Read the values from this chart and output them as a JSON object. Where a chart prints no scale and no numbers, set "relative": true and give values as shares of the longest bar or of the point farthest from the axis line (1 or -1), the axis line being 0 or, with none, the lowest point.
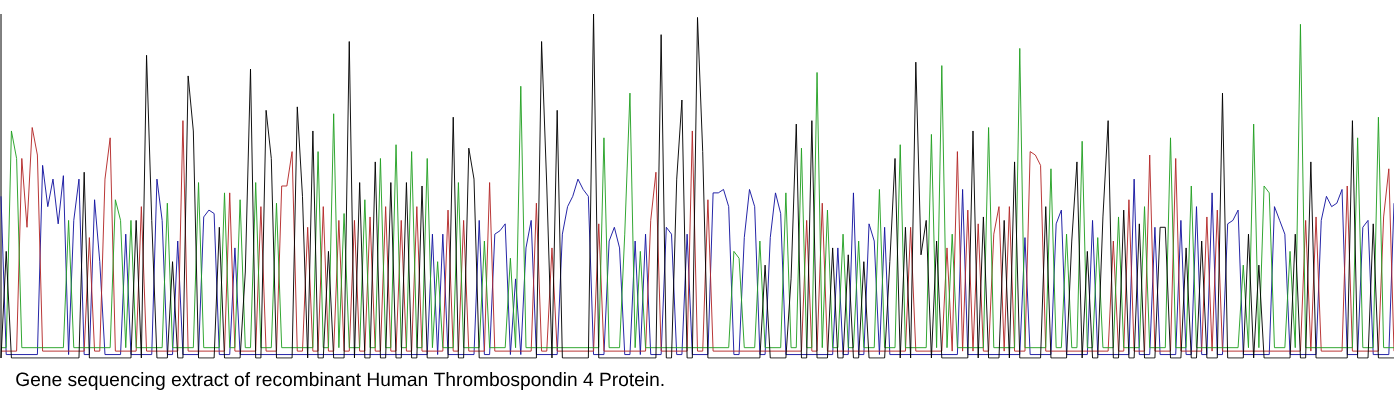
{
  "chart_data": {
    "type": "line",
    "relative": true,
    "annotations": [
      "Gene sequencing extract of recombinant Human Thrombospondin 4 Protein."
    ],
    "categories": [
      null,
      null,
      null,
      null,
      null,
      null,
      null,
      null,
      null,
      null,
      null,
      null,
      null,
      null,
      null,
      null,
      null,
      null,
      null,
      null,
      null,
      null,
      null,
      null,
      null,
      null,
      null,
      null,
      null,
      null,
      null,
      null,
      null,
      null,
      null,
      null,
      null,
      null,
      null,
      null,
      null,
      null,
      null,
      null,
      null,
      null,
      null,
      null,
      null,
      null,
      null,
      null,
      null,
      null,
      null,
      null,
      null,
      null,
      null,
      null,
      null,
      null,
      null,
      null,
      null,
      null,
      null,
      null,
      null,
      null,
      null,
      null,
      null,
      null,
      null,
      null,
      null,
      null,
      null,
      null,
      null,
      null,
      null,
      null,
      null,
      null,
      null,
      null,
      null,
      null,
      null,
      null,
      null,
      null,
      null,
      null,
      null,
      null,
      null,
      null,
      null,
      null,
      null,
      null,
      null,
      null,
      null,
      null,
      null,
      null,
      null,
      null,
      null,
      null,
      null,
      null,
      null,
      null,
      null,
      null,
      null,
      null,
      null,
      null,
      null,
      null,
      null,
      null,
      null,
      null,
      null,
      null,
      null,
      null,
      null,
      null,
      null,
      null,
      null,
      null,
      null,
      null,
      null,
      null,
      null,
      null,
      null,
      null,
      null,
      null,
      null,
      null,
      null,
      null,
      null,
      null,
      null,
      null,
      null,
      null,
      null,
      null,
      null,
      null,
      null,
      null,
      null,
      null,
      null,
      null,
      null,
      null,
      null,
      null,
      null,
      null,
      null,
      null,
      null,
      null,
      null,
      null,
      null,
      null,
      null,
      null,
      null,
      null,
      null,
      null,
      null,
      null,
      null,
      null,
      null,
      null,
      null,
      null,
      null,
      null,
      null,
      null,
      null,
      null,
      null,
      null,
      null,
      null,
      null,
      null,
      null,
      null,
      null,
      null,
      null,
      null,
      null,
      null,
      null,
      null,
      null,
      null,
      null,
      null,
      null,
      null,
      null,
      null,
      null,
      null,
      null,
      null,
      null,
      null,
      null,
      null,
      null,
      null,
      null,
      null,
      null,
      null,
      null,
      null,
      null,
      null,
      null,
      null,
      null,
      null,
      null,
      null,
      null,
      null,
      null,
      null,
      null,
      null,
      null,
      null,
      null,
      null,
      null,
      null,
      null,
      null,
      null,
      null,
      null
    ],
    "series": [
      {
        "color": "#1414a0",
        "values": [
          0.47,
          0.01,
          0.01,
          0.01,
          0.01,
          0.01,
          0.01,
          0.01,
          0.56,
          0.44,
          0.52,
          0.39,
          0.53,
          0.01,
          0.4,
          0.52,
          0.01,
          0.01,
          0.46,
          0.28,
          0.01,
          0.01,
          0.01,
          0.01,
          0.36,
          0.01,
          0.01,
          0.01,
          0.01,
          0.01,
          0.52,
          0.4,
          0.01,
          0.01,
          0.34,
          0.01,
          0.01,
          0.01,
          0.01,
          0.41,
          0.43,
          0.42,
          0.01,
          0.01,
          0.01,
          0.32,
          0.01,
          0.01,
          0.01,
          0.01,
          0.01,
          0.01,
          0.01,
          0.01,
          0.01,
          0.01,
          0.01,
          0.01,
          0.01,
          0.01,
          0.01,
          0.01,
          0.01,
          0.01,
          0.01,
          0.01,
          0.01,
          0.01,
          0.01,
          0.01,
          0.01,
          0.01,
          0.01,
          0.01,
          0.01,
          0.01,
          0.01,
          0.01,
          0.01,
          0.01,
          0.01,
          0.01,
          0.01,
          0.36,
          0.01,
          0.36,
          0.01,
          0.01,
          0.01,
          0.01,
          0.01,
          0.01,
          0.4,
          0.01,
          0.01,
          0.36,
          0.37,
          0.39,
          0.01,
          0.23,
          0.01,
          0.32,
          0.4,
          0.01,
          0.01,
          0.01,
          0.01,
          0.01,
          0.36,
          0.44,
          0.47,
          0.52,
          0.49,
          0.47,
          0.01,
          0.01,
          0.01,
          0.34,
          0.38,
          0.32,
          0.01,
          0.01,
          0.34,
          0.01,
          0.36,
          0.01,
          0.01,
          0.01,
          0.38,
          0.36,
          0.01,
          0.01,
          0.36,
          0.01,
          0.01,
          0.01,
          0.01,
          0.48,
          0.48,
          0.49,
          0.44,
          0.01,
          0.01,
          0.35,
          0.49,
          0.44,
          0.01,
          0.01,
          0.35,
          0.48,
          0.42,
          0.01,
          0.01,
          0.01,
          0.01,
          0.01,
          0.01,
          0.01,
          0.01,
          0.01,
          0.01,
          0.32,
          0.01,
          0.01,
          0.48,
          0.01,
          0.01,
          0.39,
          0.34,
          0.01,
          0.38,
          0.01,
          0.01,
          0.01,
          0.01,
          0.01,
          0.01,
          0.01,
          0.01,
          0.01,
          0.01,
          0.01,
          0.01,
          0.01,
          0.01,
          0.49,
          0.01,
          0.01,
          0.01,
          0.01,
          0.01,
          0.01,
          0.01,
          0.01,
          0.01,
          0.01,
          0.01,
          0.35,
          0.01,
          0.01,
          0.01,
          0.01,
          0.01,
          0.39,
          0.43,
          0.01,
          0.01,
          0.01,
          0.01,
          0.01,
          0.4,
          0.01,
          0.01,
          0.01,
          0.01,
          0.01,
          0.01,
          0.01,
          0.52,
          0.01,
          0.01,
          0.01,
          0.38,
          0.01,
          0.01,
          0.01,
          0.01,
          0.4,
          0.01,
          0.01,
          0.44,
          0.01,
          0.01,
          0.48,
          0.01,
          0.01,
          0.39,
          0.4,
          0.43,
          0.01,
          0.01,
          0.01,
          0.01,
          0.01,
          0.01,
          0.44,
          0.4,
          0.36,
          0.01,
          0.01,
          0.01,
          0.01,
          0.01,
          0.01,
          0.4,
          0.47,
          0.44,
          0.45,
          0.49,
          0.01,
          0.01,
          0.01,
          0.38,
          0.4,
          0.01,
          0.01,
          0.01,
          0.01,
          0.45
        ]
      },
      {
        "color": "#b42828",
        "values": [
          0.02,
          0.02,
          0.02,
          0.02,
          0.58,
          0.38,
          0.67,
          0.59,
          0.02,
          0.02,
          0.02,
          0.02,
          0.02,
          0.02,
          0.02,
          0.02,
          0.02,
          0.35,
          0.02,
          0.02,
          0.52,
          0.64,
          0.02,
          0.02,
          0.02,
          0.02,
          0.02,
          0.44,
          0.02,
          0.02,
          0.02,
          0.02,
          0.02,
          0.02,
          0.02,
          0.69,
          0.02,
          0.02,
          0.02,
          0.02,
          0.02,
          0.02,
          0.02,
          0.02,
          0.48,
          0.02,
          0.02,
          0.02,
          0.02,
          0.02,
          0.44,
          0.02,
          0.02,
          0.02,
          0.5,
          0.5,
          0.6,
          0.02,
          0.02,
          0.38,
          0.02,
          0.02,
          0.44,
          0.02,
          0.02,
          0.4,
          0.02,
          0.02,
          0.4,
          0.02,
          0.02,
          0.41,
          0.02,
          0.02,
          0.44,
          0.02,
          0.02,
          0.4,
          0.02,
          0.02,
          0.44,
          0.02,
          0.02,
          0.02,
          0.02,
          0.02,
          0.43,
          0.02,
          0.02,
          0.4,
          0.02,
          0.02,
          0.02,
          0.02,
          0.51,
          0.02,
          0.02,
          0.02,
          0.02,
          0.02,
          0.02,
          0.02,
          0.02,
          0.45,
          0.02,
          0.02,
          0.32,
          0.02,
          0.02,
          0.02,
          0.02,
          0.02,
          0.02,
          0.02,
          0.02,
          0.39,
          0.02,
          0.02,
          0.02,
          0.02,
          0.02,
          0.02,
          0.02,
          0.02,
          0.02,
          0.4,
          0.54,
          0.02,
          0.02,
          0.02,
          0.02,
          0.02,
          0.02,
          0.66,
          0.02,
          0.02,
          0.46,
          0.02,
          0.02,
          0.02,
          0.02,
          0.02,
          0.02,
          0.02,
          0.02,
          0.02,
          0.02,
          0.02,
          0.02,
          0.02,
          0.02,
          0.02,
          0.02,
          0.02,
          0.02,
          0.4,
          0.02,
          0.02,
          0.45,
          0.02,
          0.02,
          0.02,
          0.02,
          0.02,
          0.02,
          0.02,
          0.02,
          0.02,
          0.02,
          0.02,
          0.02,
          0.02,
          0.02,
          0.02,
          0.02,
          0.38,
          0.02,
          0.02,
          0.02,
          0.02,
          0.02,
          0.02,
          0.32,
          0.02,
          0.6,
          0.02,
          0.43,
          0.02,
          0.39,
          0.02,
          0.02,
          0.36,
          0.44,
          0.02,
          0.44,
          0.02,
          0.02,
          0.02,
          0.6,
          0.59,
          0.56,
          0.02,
          0.02,
          0.02,
          0.02,
          0.02,
          0.02,
          0.02,
          0.02,
          0.02,
          0.02,
          0.02,
          0.02,
          0.02,
          0.34,
          0.02,
          0.02,
          0.46,
          0.02,
          0.02,
          0.02,
          0.59,
          0.02,
          0.02,
          0.02,
          0.02,
          0.58,
          0.02,
          0.02,
          0.02,
          0.02,
          0.02,
          0.41,
          0.02,
          0.43,
          0.02,
          0.02,
          0.02,
          0.02,
          0.02,
          0.02,
          0.02,
          0.02,
          0.02,
          0.02,
          0.02,
          0.02,
          0.02,
          0.02,
          0.02,
          0.02,
          0.4,
          0.02,
          0.41,
          0.02,
          0.02,
          0.02,
          0.02,
          0.02,
          0.5,
          0.02,
          0.02,
          0.02,
          0.02,
          0.02,
          0.02,
          0.41,
          0.55,
          0.02
        ]
      },
      {
        "color": "#22a022",
        "values": [
          0.03,
          0.03,
          0.66,
          0.58,
          0.03,
          0.03,
          0.03,
          0.03,
          0.03,
          0.03,
          0.03,
          0.03,
          0.03,
          0.4,
          0.03,
          0.03,
          0.03,
          0.03,
          0.03,
          0.03,
          0.03,
          0.03,
          0.46,
          0.4,
          0.03,
          0.4,
          0.03,
          0.03,
          0.03,
          0.03,
          0.03,
          0.03,
          0.45,
          0.03,
          0.03,
          0.03,
          0.03,
          0.03,
          0.51,
          0.03,
          0.03,
          0.03,
          0.03,
          0.48,
          0.03,
          0.03,
          0.46,
          0.03,
          0.03,
          0.51,
          0.03,
          0.03,
          0.03,
          0.45,
          0.03,
          0.03,
          0.03,
          0.03,
          0.03,
          0.03,
          0.03,
          0.6,
          0.03,
          0.03,
          0.71,
          0.03,
          0.42,
          0.03,
          0.03,
          0.03,
          0.46,
          0.03,
          0.03,
          0.58,
          0.03,
          0.03,
          0.62,
          0.03,
          0.03,
          0.6,
          0.03,
          0.03,
          0.58,
          0.03,
          0.28,
          0.03,
          0.03,
          0.03,
          0.51,
          0.03,
          0.03,
          0.03,
          0.03,
          0.34,
          0.03,
          0.03,
          0.03,
          0.03,
          0.29,
          0.03,
          0.79,
          0.03,
          0.03,
          0.03,
          0.03,
          0.03,
          0.03,
          0.03,
          0.03,
          0.03,
          0.03,
          0.03,
          0.03,
          0.03,
          0.03,
          0.03,
          0.64,
          0.03,
          0.03,
          0.03,
          0.36,
          0.77,
          0.03,
          0.31,
          0.03,
          0.03,
          0.03,
          0.03,
          0.03,
          0.03,
          0.03,
          0.03,
          0.03,
          0.03,
          0.03,
          0.03,
          0.03,
          0.03,
          0.03,
          0.03,
          0.03,
          0.31,
          0.29,
          0.03,
          0.03,
          0.03,
          0.34,
          0.03,
          0.03,
          0.03,
          0.03,
          0.48,
          0.03,
          0.03,
          0.61,
          0.03,
          0.03,
          0.83,
          0.03,
          0.43,
          0.03,
          0.03,
          0.36,
          0.03,
          0.03,
          0.34,
          0.03,
          0.03,
          0.03,
          0.49,
          0.03,
          0.03,
          0.03,
          0.62,
          0.03,
          0.03,
          0.03,
          0.03,
          0.03,
          0.65,
          0.03,
          0.85,
          0.03,
          0.36,
          0.03,
          0.03,
          0.03,
          0.03,
          0.03,
          0.03,
          0.67,
          0.03,
          0.03,
          0.03,
          0.03,
          0.03,
          0.9,
          0.03,
          0.03,
          0.03,
          0.03,
          0.03,
          0.55,
          0.03,
          0.03,
          0.36,
          0.03,
          0.03,
          0.63,
          0.03,
          0.03,
          0.35,
          0.03,
          0.03,
          0.03,
          0.41,
          0.03,
          0.03,
          0.03,
          0.03,
          0.44,
          0.03,
          0.03,
          0.03,
          0.03,
          0.64,
          0.03,
          0.03,
          0.03,
          0.5,
          0.03,
          0.03,
          0.03,
          0.03,
          0.03,
          0.03,
          0.03,
          0.03,
          0.03,
          0.27,
          0.03,
          0.68,
          0.03,
          0.5,
          0.48,
          0.03,
          0.03,
          0.03,
          0.31,
          0.03,
          0.97,
          0.03,
          0.03,
          0.03,
          0.03,
          0.03,
          0.03,
          0.03,
          0.03,
          0.03,
          0.03,
          0.64,
          0.03,
          0.03,
          0.03,
          0.7,
          0.03,
          0.03,
          0.03
        ]
      },
      {
        "color": "#000000",
        "values": [
          0,
          0.31,
          0,
          0,
          0,
          0,
          0,
          0,
          0,
          0,
          0,
          0,
          0,
          0,
          0,
          0,
          0.54,
          0,
          0,
          0,
          0,
          0,
          0,
          0,
          0,
          0,
          0.4,
          0,
          0.88,
          0.4,
          0,
          0,
          0,
          0.28,
          0,
          0,
          0.82,
          0.66,
          0,
          0,
          0,
          0,
          0.38,
          0,
          0,
          0,
          0,
          0.25,
          0.84,
          0,
          0,
          0.72,
          0.58,
          0,
          0,
          0,
          0,
          0.73,
          0.47,
          0,
          0.66,
          0,
          0,
          0.31,
          0,
          0,
          0,
          0.92,
          0,
          0.51,
          0,
          0,
          0.57,
          0,
          0,
          0.51,
          0,
          0,
          0.51,
          0,
          0,
          0.5,
          0,
          0,
          0,
          0,
          0,
          0.7,
          0,
          0,
          0.61,
          0.52,
          0,
          0,
          0,
          0,
          0,
          0,
          0,
          0,
          0,
          0,
          0,
          0,
          0.92,
          0.5,
          0,
          0.72,
          0,
          0,
          0,
          0,
          0,
          0,
          1,
          0,
          0,
          0,
          0,
          0,
          0,
          0,
          0,
          0,
          0,
          0,
          0,
          0.94,
          0,
          0,
          0.52,
          0.75,
          0,
          0,
          0.99,
          0.6,
          0,
          0,
          0,
          0,
          0,
          0,
          0,
          0,
          0,
          0,
          0,
          0.27,
          0,
          0,
          0,
          0,
          0.23,
          0.68,
          0,
          0,
          0.69,
          0,
          0,
          0,
          0.32,
          0,
          0,
          0.3,
          0,
          0,
          0.28,
          0,
          0,
          0,
          0,
          0.28,
          0.58,
          0,
          0.38,
          0,
          0.86,
          0.3,
          0.4,
          0,
          0.34,
          0,
          0,
          0,
          0,
          0,
          0,
          0.66,
          0,
          0.41,
          0,
          0,
          0,
          0.4,
          0,
          0.57,
          0,
          0,
          0,
          0,
          0,
          0.44,
          0,
          0,
          0,
          0,
          0.34,
          0.57,
          0,
          0.31,
          0,
          0,
          0.41,
          0.69,
          0,
          0,
          0.43,
          0,
          0,
          0.39,
          0,
          0,
          0,
          0.38,
          0.38,
          0,
          0,
          0,
          0.32,
          0,
          0,
          0.34,
          0,
          0,
          0,
          0.77,
          0,
          0,
          0,
          0,
          0.36,
          0,
          0.27,
          0,
          0,
          0,
          0,
          0,
          0,
          0.36,
          0,
          0,
          0.57,
          0,
          0,
          0,
          0,
          0,
          0,
          0,
          0.69,
          0,
          0,
          0,
          0.39,
          0,
          0,
          0,
          0
        ]
      }
    ]
  }
}
